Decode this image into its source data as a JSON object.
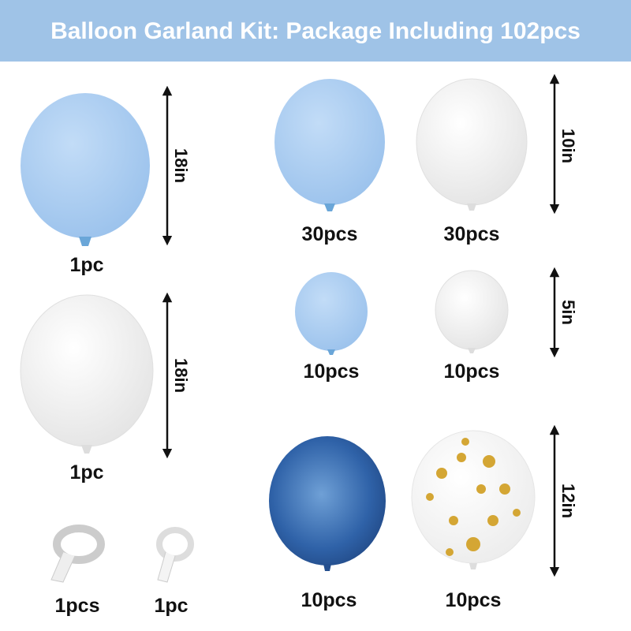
{
  "header": {
    "title": "Balloon Garland Kit: Package Including 102pcs"
  },
  "sizes": [
    "18in",
    "18in",
    "10in",
    "5in",
    "12in"
  ],
  "counts": [
    "1pc",
    "1pc",
    "30pcs",
    "30pcs",
    "10pcs",
    "10pcs",
    "10pcs",
    "10pcs",
    "1pcs",
    "1pc"
  ]
}
